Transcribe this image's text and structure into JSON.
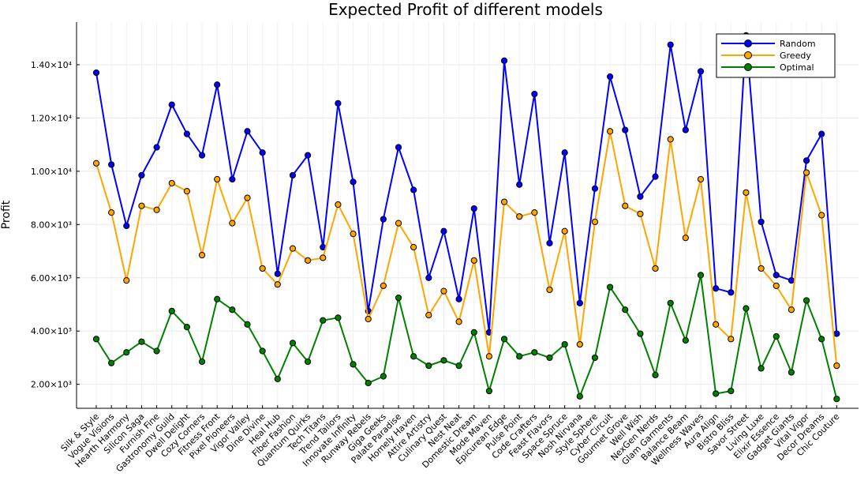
{
  "chart_data": {
    "type": "line",
    "title": "Expected Profit of different models",
    "xlabel": "",
    "ylabel": "Profit",
    "ylim": [
      1100,
      15600
    ],
    "yticks": [
      2000,
      4000,
      6000,
      8000,
      10000,
      12000,
      14000
    ],
    "ytick_labels": [
      "2.00×10³",
      "4.00×10³",
      "6.00×10³",
      "8.00×10³",
      "1.00×10⁴",
      "1.20×10⁴",
      "1.40×10⁴"
    ],
    "grid": true,
    "legend_position": "top-right",
    "categories": [
      "Silk & Style",
      "Vogue Visions",
      "Hearth Harmony",
      "Silicon Saga",
      "Furnish Fine",
      "Gastronomy Guild",
      "Dwell Delight",
      "Cozy Corners",
      "Fitness Front",
      "Pixel Pioneers",
      "Vigor Valley",
      "Dine Divine",
      "Heal Hub",
      "Fiber Fashion",
      "Quantum Quirks",
      "Tech Titans",
      "Trend Tailors",
      "Innovate Infinity",
      "Runway Rebels",
      "Giga Geeks",
      "Palate Paradise",
      "Homely Haven",
      "Attire Artistry",
      "Culinary Quest",
      "Nest Neat",
      "Domestic Dream",
      "Mode Maven",
      "Epicurean Edge",
      "Pulse Point",
      "Code Crafters",
      "Feast Flavors",
      "Space Spruce",
      "Nosh Nirvana",
      "Style Sphere",
      "Cyber Circuit",
      "Gourmet Grove",
      "Well Wish",
      "NexGen Nerds",
      "Glam Garments",
      "Balance Beam",
      "Wellness Waves",
      "Aura Align",
      "Bistro Bliss",
      "Savor Street",
      "Living Luxe",
      "Elixir Essence",
      "Gadget Giants",
      "Vital Vigor",
      "Decor Dreams",
      "Chic Couture"
    ],
    "series": [
      {
        "name": "Random",
        "color": "#0000ff",
        "values": [
          13700,
          10250,
          7950,
          9850,
          10900,
          12500,
          11400,
          10600,
          13250,
          9700,
          11500,
          10700,
          6150,
          9850,
          10600,
          7150,
          12550,
          9600,
          4750,
          8200,
          10900,
          9300,
          6000,
          7750,
          5200,
          8600,
          3950,
          14150,
          9500,
          12900,
          7300,
          10700,
          5050,
          9350,
          13550,
          11550,
          9050,
          9800,
          14750,
          11550,
          13750,
          5600,
          5450,
          15100,
          8100,
          6100,
          5900,
          10400,
          11400,
          3900
        ]
      },
      {
        "name": "Greedy",
        "color": "#ffa500",
        "values": [
          10300,
          8450,
          5900,
          8700,
          8550,
          9550,
          9250,
          6850,
          9700,
          8050,
          9000,
          6350,
          5750,
          7100,
          6650,
          6750,
          8750,
          7650,
          4450,
          5700,
          8050,
          7150,
          4600,
          5500,
          4350,
          6650,
          3050,
          8850,
          8300,
          8450,
          5550,
          7750,
          3500,
          8100,
          11500,
          8700,
          8400,
          6350,
          11200,
          7500,
          9700,
          4250,
          3700,
          9200,
          6350,
          5700,
          4800,
          9950,
          8350,
          2700
        ]
      },
      {
        "name": "Optimal",
        "color": "#008000",
        "values": [
          3700,
          2800,
          3200,
          3600,
          3250,
          4750,
          4150,
          2850,
          5200,
          4800,
          4250,
          3250,
          2200,
          3550,
          2850,
          4400,
          4500,
          2750,
          2050,
          2300,
          5250,
          3050,
          2700,
          2900,
          2700,
          3950,
          1750,
          3700,
          3050,
          3200,
          3000,
          3500,
          1550,
          3000,
          5650,
          4800,
          3900,
          2350,
          5050,
          3650,
          6100,
          1650,
          1750,
          4850,
          2600,
          3800,
          2450,
          5150,
          3700,
          1450
        ]
      }
    ]
  }
}
